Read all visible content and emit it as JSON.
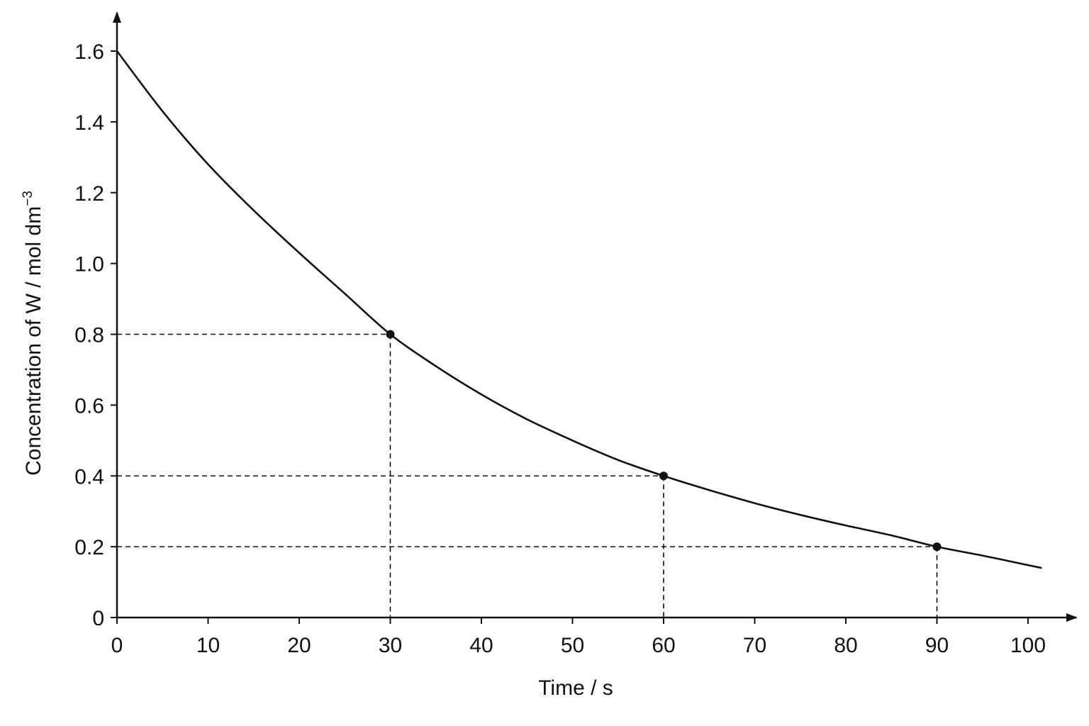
{
  "chart_data": {
    "type": "line",
    "title": "",
    "xlabel": "Time / s",
    "ylabel": {
      "text": "Concentration of W / mol dm",
      "superscript": "−3"
    },
    "xlim": [
      0,
      102
    ],
    "ylim": [
      0,
      1.6
    ],
    "x_ticks": [
      "0",
      "10",
      "20",
      "30",
      "40",
      "50",
      "60",
      "70",
      "80",
      "90",
      "100"
    ],
    "y_ticks": [
      "0",
      "0.2",
      "0.4",
      "0.6",
      "0.8",
      "1.0",
      "1.2",
      "1.4",
      "1.6"
    ],
    "grid": false,
    "legend": "none",
    "series": [
      {
        "x": [
          0,
          5,
          10,
          15,
          20,
          25,
          30,
          35,
          40,
          45,
          50,
          55,
          60,
          65,
          70,
          75,
          80,
          85,
          90,
          95,
          100,
          101.5
        ],
        "y": [
          1.6,
          1.43,
          1.28,
          1.15,
          1.03,
          0.915,
          0.8,
          0.71,
          0.63,
          0.56,
          0.5,
          0.445,
          0.4,
          0.36,
          0.323,
          0.29,
          0.26,
          0.232,
          0.2,
          0.175,
          0.148,
          0.14
        ]
      }
    ],
    "marked_points": [
      {
        "x": 30,
        "y": 0.8
      },
      {
        "x": 60,
        "y": 0.4
      },
      {
        "x": 90,
        "y": 0.2
      }
    ],
    "colors": {
      "line": "#111111",
      "background": "#ffffff"
    }
  }
}
